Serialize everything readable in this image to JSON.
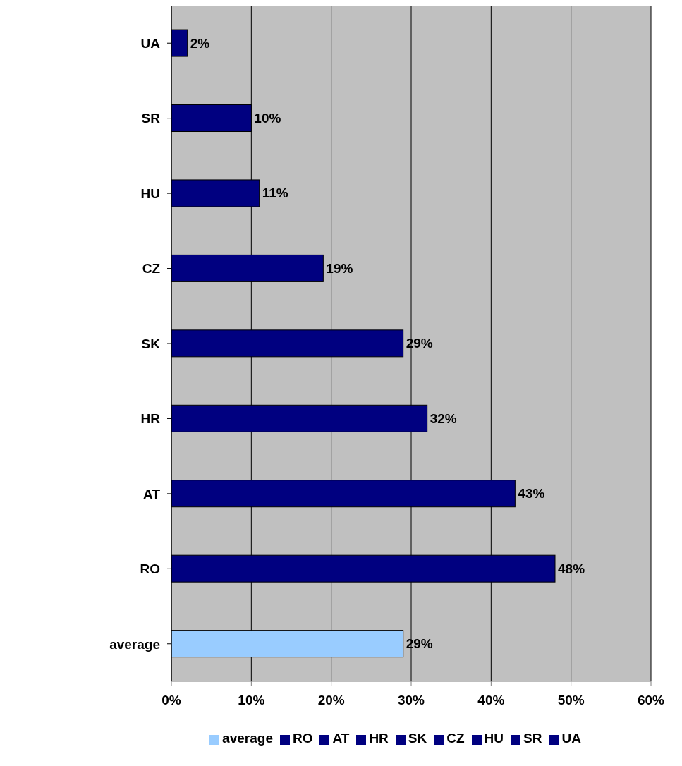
{
  "chart_data": {
    "type": "bar",
    "orientation": "horizontal",
    "stacked": true,
    "categories": [
      "UA",
      "SR",
      "HU",
      "CZ",
      "SK",
      "HR",
      "AT",
      "RO",
      "average"
    ],
    "series": [
      {
        "name": "average",
        "color": "#99ccff",
        "values": [
          null,
          null,
          null,
          null,
          null,
          null,
          null,
          null,
          29
        ],
        "value_labels": [
          null,
          null,
          null,
          null,
          null,
          null,
          null,
          null,
          "29%"
        ]
      },
      {
        "name": "RO",
        "color": "#000080",
        "values": [
          null,
          null,
          null,
          null,
          null,
          null,
          null,
          48,
          null
        ],
        "value_labels": [
          null,
          null,
          null,
          null,
          null,
          null,
          null,
          "48%",
          null
        ]
      },
      {
        "name": "AT",
        "color": "#000080",
        "values": [
          null,
          null,
          null,
          null,
          null,
          null,
          43,
          null,
          null
        ],
        "value_labels": [
          null,
          null,
          null,
          null,
          null,
          null,
          "43%",
          null,
          null
        ]
      },
      {
        "name": "HR",
        "color": "#000080",
        "values": [
          null,
          null,
          null,
          null,
          null,
          32,
          null,
          null,
          null
        ],
        "value_labels": [
          null,
          null,
          null,
          null,
          null,
          "32%",
          null,
          null,
          null
        ]
      },
      {
        "name": "SK",
        "color": "#000080",
        "values": [
          null,
          null,
          null,
          null,
          29,
          null,
          null,
          null,
          null
        ],
        "value_labels": [
          null,
          null,
          null,
          null,
          "29%",
          null,
          null,
          null,
          null
        ]
      },
      {
        "name": "CZ",
        "color": "#000080",
        "values": [
          null,
          null,
          null,
          19,
          null,
          null,
          null,
          null,
          null
        ],
        "value_labels": [
          null,
          null,
          null,
          "19%",
          null,
          null,
          null,
          null,
          null
        ]
      },
      {
        "name": "HU",
        "color": "#000080",
        "values": [
          null,
          null,
          11,
          null,
          null,
          null,
          null,
          null,
          null
        ],
        "value_labels": [
          null,
          null,
          "11%",
          null,
          null,
          null,
          null,
          null,
          null
        ]
      },
      {
        "name": "SR",
        "color": "#000080",
        "values": [
          null,
          10,
          null,
          null,
          null,
          null,
          null,
          null,
          null
        ],
        "value_labels": [
          null,
          "10%",
          null,
          null,
          null,
          null,
          null,
          null,
          null
        ]
      },
      {
        "name": "UA",
        "color": "#000080",
        "values": [
          2,
          null,
          null,
          null,
          null,
          null,
          null,
          null,
          null
        ],
        "value_labels": [
          "2%",
          null,
          null,
          null,
          null,
          null,
          null,
          null,
          null
        ]
      }
    ],
    "xlim": [
      0,
      60
    ],
    "xticks": [
      {
        "value": 0,
        "label": "0%"
      },
      {
        "value": 10,
        "label": "10%"
      },
      {
        "value": 20,
        "label": "20%"
      },
      {
        "value": 30,
        "label": "30%"
      },
      {
        "value": 40,
        "label": "40%"
      },
      {
        "value": 50,
        "label": "50%"
      },
      {
        "value": 60,
        "label": "60%"
      }
    ],
    "grid": "x",
    "legend": "bottom"
  }
}
